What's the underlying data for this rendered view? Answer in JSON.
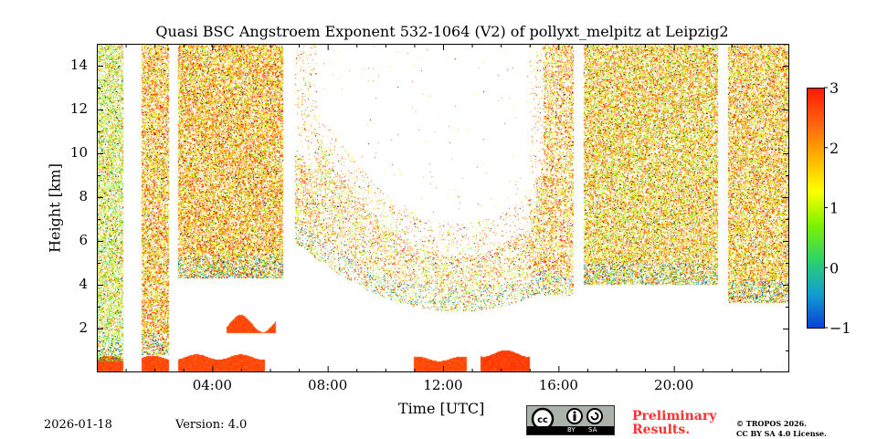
{
  "chart_data": {
    "type": "heatmap",
    "title": "Quasi BSC Angstroem Exponent 532-1064 (V2) of pollyxt_melpitz at Leipzig2",
    "xlabel": "Time [UTC]",
    "ylabel": "Height [km]",
    "xlim_hours": [
      0,
      24
    ],
    "ylim_km": [
      0,
      15
    ],
    "xticks": [
      {
        "v": 4,
        "label": "04:00"
      },
      {
        "v": 8,
        "label": "08:00"
      },
      {
        "v": 12,
        "label": "12:00"
      },
      {
        "v": 16,
        "label": "16:00"
      },
      {
        "v": 20,
        "label": "20:00"
      }
    ],
    "yticks": [
      {
        "v": 2,
        "label": "2"
      },
      {
        "v": 4,
        "label": "4"
      },
      {
        "v": 6,
        "label": "6"
      },
      {
        "v": 8,
        "label": "8"
      },
      {
        "v": 10,
        "label": "10"
      },
      {
        "v": 12,
        "label": "12"
      },
      {
        "v": 14,
        "label": "14"
      }
    ],
    "colorbar": {
      "range": [
        -1,
        3
      ],
      "ticks": [
        {
          "v": -1,
          "label": "−1"
        },
        {
          "v": 0,
          "label": "0"
        },
        {
          "v": 1,
          "label": "1"
        },
        {
          "v": 2,
          "label": "2"
        },
        {
          "v": 3,
          "label": "3"
        }
      ],
      "colors": [
        "#0a3fd8",
        "#129fd0",
        "#2ed36a",
        "#7cf200",
        "#ffff00",
        "#ffb000",
        "#ff6010",
        "#ff1a00"
      ]
    },
    "data_gaps_hours": [
      [
        0.9,
        1.55
      ],
      [
        2.5,
        2.8
      ],
      [
        6.45,
        6.85
      ],
      [
        16.5,
        16.85
      ],
      [
        21.5,
        21.85
      ]
    ],
    "noise_regions": [
      {
        "t": [
          0,
          0.9
        ],
        "h": [
          0.5,
          15
        ],
        "density": 0.45,
        "mean": 1.2
      },
      {
        "t": [
          1.55,
          2.5
        ],
        "h": [
          0.8,
          15
        ],
        "density": 0.5,
        "mean": 1.9
      },
      {
        "t": [
          2.8,
          6.45
        ],
        "h": [
          4.3,
          15
        ],
        "density": 0.55,
        "mean": 1.9
      },
      {
        "t": [
          6.85,
          15.5
        ],
        "h": "u-shape",
        "density": 0.15,
        "mean": 1.8
      },
      {
        "t": [
          15.5,
          16.5
        ],
        "h": [
          3.5,
          15
        ],
        "density": 0.35,
        "mean": 1.9
      },
      {
        "t": [
          16.85,
          21.5
        ],
        "h": [
          4.0,
          15
        ],
        "density": 0.5,
        "mean": 1.7
      },
      {
        "t": [
          21.85,
          24
        ],
        "h": [
          3.2,
          15
        ],
        "density": 0.5,
        "mean": 1.8
      }
    ],
    "aerosol_layers": [
      {
        "t": [
          0,
          2.5
        ],
        "h": [
          0.05,
          0.75
        ],
        "value": 2.6
      },
      {
        "t": [
          2.8,
          5.8
        ],
        "h": [
          0.05,
          0.8
        ],
        "value": 2.6
      },
      {
        "t": [
          4.5,
          6.2
        ],
        "h": [
          1.8,
          2.6
        ],
        "value": 2.6
      },
      {
        "t": [
          11.0,
          12.8
        ],
        "h": [
          0.05,
          0.7
        ],
        "value": 2.6
      },
      {
        "t": [
          13.3,
          15.0
        ],
        "h": [
          0.05,
          1.0
        ],
        "value": 2.7
      }
    ]
  },
  "footer": {
    "date": "2026-01-18",
    "version": "Version: 4.0",
    "cc_badge": {
      "by": "BY",
      "sa": "SA",
      "cc": "cc"
    },
    "preliminary": [
      "Preliminary",
      "Results."
    ],
    "copyright": [
      "© TROPOS 2026.",
      "CC BY SA 4.0 License."
    ]
  }
}
